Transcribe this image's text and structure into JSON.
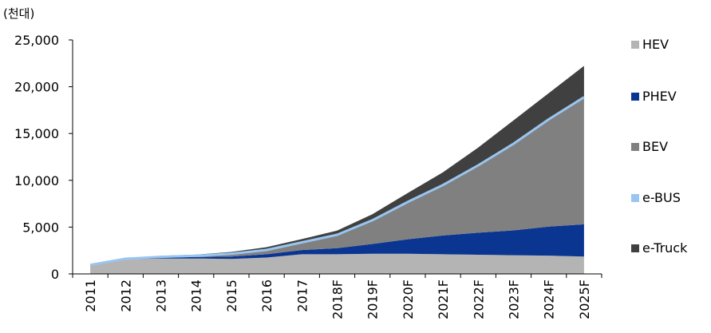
{
  "unit_label": "(천대)",
  "chart_data": {
    "type": "area",
    "stacked": true,
    "unit": "(천대)",
    "categories": [
      "2011",
      "2012",
      "2013",
      "2014",
      "2015",
      "2016",
      "2017",
      "2018F",
      "2019F",
      "2020F",
      "2021F",
      "2022F",
      "2023F",
      "2024F",
      "2025F"
    ],
    "ylim": [
      0,
      25000
    ],
    "yticks": [
      0,
      5000,
      10000,
      15000,
      20000,
      25000
    ],
    "ytick_labels": [
      "0",
      "5,000",
      "10,000",
      "15,000",
      "20,000",
      "25,000"
    ],
    "grid": false,
    "legend_position": "right",
    "series": [
      {
        "name": "HEV",
        "color": "#b4b4b4",
        "kind": "area",
        "values": [
          950,
          1550,
          1650,
          1650,
          1600,
          1750,
          2100,
          2100,
          2150,
          2150,
          2100,
          2050,
          2000,
          1950,
          1850
        ]
      },
      {
        "name": "PHEV",
        "color": "#0a3591",
        "kind": "area",
        "values": [
          0,
          50,
          100,
          150,
          250,
          350,
          450,
          650,
          1050,
          1550,
          2000,
          2350,
          2650,
          3100,
          3450
        ]
      },
      {
        "name": "BEV",
        "color": "#808080",
        "kind": "area",
        "values": [
          0,
          0,
          50,
          100,
          250,
          400,
          750,
          1350,
          2450,
          3900,
          5300,
          7100,
          9150,
          11350,
          13450
        ]
      },
      {
        "name": "e-BUS",
        "color": "#99c5f0",
        "kind": "line",
        "values": [
          10,
          20,
          30,
          40,
          50,
          60,
          70,
          80,
          80,
          90,
          100,
          100,
          110,
          120,
          130
        ]
      },
      {
        "name": "e-Truck",
        "color": "#404040",
        "kind": "area",
        "values": [
          50,
          80,
          100,
          120,
          200,
          300,
          350,
          450,
          650,
          950,
          1350,
          1900,
          2500,
          2800,
          3350
        ]
      }
    ]
  }
}
